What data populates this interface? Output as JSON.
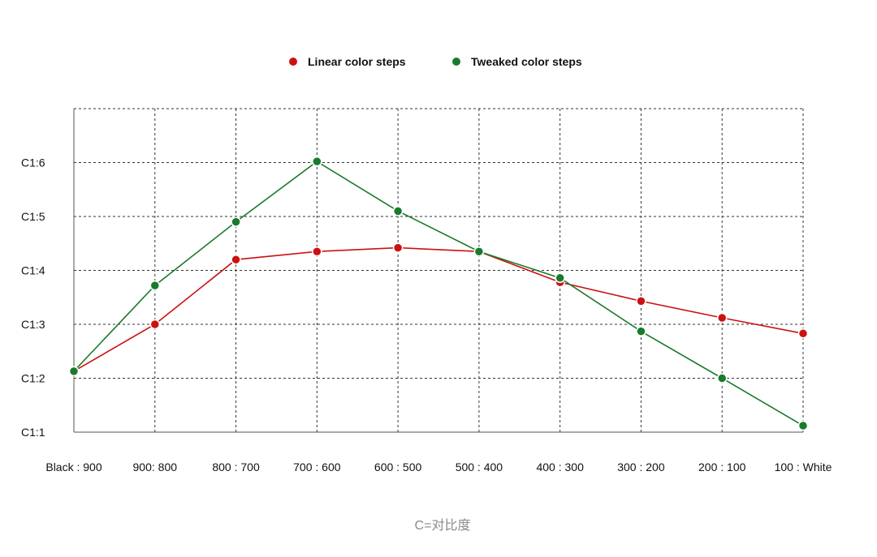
{
  "chart_data": {
    "type": "line",
    "title": "",
    "xlabel": "",
    "ylabel": "",
    "categories": [
      "Black : 900",
      "900: 800",
      "800 : 700",
      "700 : 600",
      "600 : 500",
      "500 : 400",
      "400 : 300",
      "300 : 200",
      "200 : 100",
      "100 : White"
    ],
    "y_ticks": [
      {
        "value": 1,
        "label": "C1:1"
      },
      {
        "value": 2,
        "label": "C1:2"
      },
      {
        "value": 3,
        "label": "C1:3"
      },
      {
        "value": 4,
        "label": "C1:4"
      },
      {
        "value": 5,
        "label": "C1:5"
      },
      {
        "value": 6,
        "label": "C1:6"
      }
    ],
    "ylim": [
      1,
      7
    ],
    "grid": true,
    "legend_position": "top-center",
    "series": [
      {
        "name": "Linear color steps",
        "color": "#cc1111",
        "values": [
          2.13,
          3.0,
          4.2,
          4.35,
          4.42,
          4.35,
          3.78,
          3.43,
          3.12,
          2.83
        ]
      },
      {
        "name": "Tweaked color steps",
        "color": "#1a7a2c",
        "values": [
          2.13,
          3.72,
          4.9,
          6.02,
          5.1,
          4.35,
          3.86,
          2.87,
          2.0,
          1.12
        ]
      }
    ],
    "caption": "C=对比度"
  }
}
